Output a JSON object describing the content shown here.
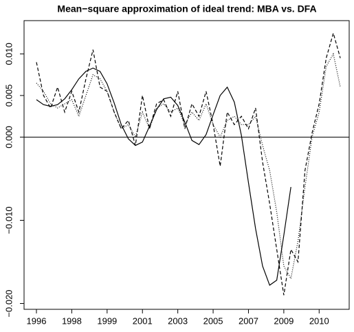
{
  "chart_data": {
    "type": "line",
    "title": "Mean−square approximation of ideal trend: MBA vs. DFA",
    "x": [
      0,
      4,
      8,
      12,
      16,
      20,
      24,
      28,
      32,
      36,
      40,
      44,
      48,
      52,
      56,
      60,
      64,
      68,
      72,
      76,
      80,
      84,
      88,
      92,
      96,
      100,
      104,
      108,
      112,
      116,
      120,
      124,
      128,
      132,
      136,
      140,
      144,
      148,
      152,
      156,
      160,
      164,
      168,
      172
    ],
    "series": [
      {
        "color": "#000000",
        "dash": "none",
        "values": [
          0.0045,
          0.0039,
          0.0037,
          0.0039,
          0.0046,
          0.0057,
          0.007,
          0.0079,
          0.0083,
          0.0079,
          0.0064,
          0.0041,
          0.0015,
          -0.0002,
          -0.001,
          -0.0006,
          0.0013,
          0.0033,
          0.0046,
          0.0048,
          0.0038,
          0.0018,
          -0.0004,
          -0.0009,
          0.0003,
          0.0027,
          0.005,
          0.006,
          0.0042,
          0.0002,
          -0.0055,
          -0.011,
          -0.0155,
          -0.0178,
          -0.0172,
          -0.0118,
          -0.006,
          null,
          null,
          null,
          null,
          null,
          null,
          null
        ]
      },
      {
        "color": "#000000",
        "dash": "5,3",
        "values": [
          0.009,
          0.005,
          0.0035,
          0.006,
          0.003,
          0.0055,
          0.003,
          0.007,
          0.0105,
          0.006,
          0.0055,
          0.003,
          0.001,
          0.002,
          -0.001,
          0.005,
          0.001,
          0.004,
          0.0045,
          0.0025,
          0.0055,
          0.001,
          0.004,
          0.0025,
          0.0055,
          0.0015,
          -0.0035,
          0.003,
          0.0015,
          0.0025,
          0.001,
          0.0035,
          -0.003,
          -0.008,
          -0.0135,
          -0.019,
          -0.0135,
          -0.015,
          -0.004,
          0.0005,
          0.004,
          0.0095,
          0.0125,
          0.0095
        ]
      },
      {
        "color": "#000000",
        "dash": "1,2",
        "values": [
          0.0065,
          0.0055,
          0.004,
          0.0035,
          0.004,
          0.0045,
          0.0025,
          0.005,
          0.0075,
          0.007,
          0.0055,
          0.003,
          0.001,
          0.0015,
          0.0,
          0.003,
          0.001,
          0.0035,
          0.004,
          0.003,
          0.0035,
          0.0015,
          0.003,
          0.002,
          0.004,
          0.0015,
          0.0,
          0.002,
          0.0025,
          0.0015,
          0.0015,
          0.0025,
          -0.001,
          -0.004,
          -0.009,
          -0.0155,
          -0.017,
          -0.0125,
          -0.006,
          0.0,
          0.003,
          0.0085,
          0.01,
          0.006
        ]
      }
    ],
    "xlim": [
      -7,
      177
    ],
    "xticks": [
      {
        "value": 0,
        "label": "1996"
      },
      {
        "value": 20,
        "label": "1998"
      },
      {
        "value": 40,
        "label": "1999"
      },
      {
        "value": 60,
        "label": "2001"
      },
      {
        "value": 80,
        "label": "2003"
      },
      {
        "value": 100,
        "label": "2005"
      },
      {
        "value": 120,
        "label": "2007"
      },
      {
        "value": 140,
        "label": "2009"
      },
      {
        "value": 160,
        "label": "2010"
      }
    ],
    "ylim": [
      -0.0207,
      0.014
    ],
    "yticks": [
      {
        "value": 0.01,
        "label": "0.010"
      },
      {
        "value": 0.005,
        "label": "0.005"
      },
      {
        "value": 0,
        "label": "0.000"
      },
      {
        "value": -0.01,
        "label": "−0.010"
      },
      {
        "value": -0.02,
        "label": "−0.020"
      }
    ],
    "hline": 0
  }
}
